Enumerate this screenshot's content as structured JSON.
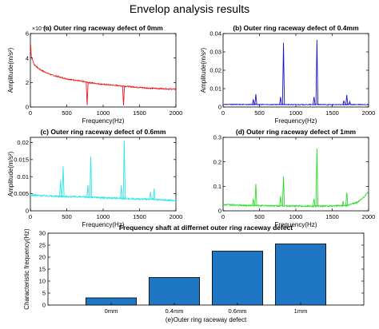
{
  "figure_title": "Envelop analysis results",
  "chart_data": [
    {
      "type": "line",
      "title": "(a) Outer ring raceway defect of 0mm",
      "xlabel": "Frequency(Hz)",
      "ylabel": "Amplitude(m/s²)",
      "exponent_label": "×10⁻³",
      "xlim": [
        0,
        2000
      ],
      "ylim": [
        0,
        6
      ],
      "xticks": [
        0,
        500,
        1000,
        1500,
        2000
      ],
      "yticks": [
        0,
        2,
        4,
        6
      ],
      "ytick_labels": [
        "0",
        "2",
        "4",
        "6"
      ],
      "color": "#e8191d",
      "baseline": [
        [
          0,
          4.4
        ],
        [
          5,
          5.3
        ],
        [
          12,
          4.2
        ],
        [
          25,
          3.9
        ],
        [
          50,
          3.5
        ],
        [
          100,
          3.2
        ],
        [
          150,
          3.0
        ],
        [
          200,
          2.85
        ],
        [
          300,
          2.6
        ],
        [
          400,
          2.45
        ],
        [
          500,
          2.3
        ],
        [
          600,
          2.2
        ],
        [
          800,
          2.0
        ],
        [
          1000,
          1.85
        ],
        [
          1200,
          1.75
        ],
        [
          1400,
          1.65
        ],
        [
          1600,
          1.55
        ],
        [
          1800,
          1.5
        ],
        [
          2000,
          1.45
        ]
      ],
      "noise": 0.05,
      "peaks": [
        [
          780,
          0.15
        ],
        [
          1280,
          0.12
        ]
      ]
    },
    {
      "type": "line",
      "title": "(b) Outer ring raceway defect of 0.4mm",
      "xlabel": "Frequency(Hz)",
      "ylabel": "Amplitude(m/s²)",
      "xlim": [
        0,
        2000
      ],
      "ylim": [
        0,
        0.04
      ],
      "xticks": [
        0,
        500,
        1000,
        1500,
        2000
      ],
      "yticks": [
        0,
        0.01,
        0.02,
        0.03,
        0.04
      ],
      "ytick_labels": [
        "0",
        "0.01",
        "0.02",
        "0.03",
        "0.04"
      ],
      "color": "#1414c8",
      "baseline": [
        [
          0,
          0.0014
        ],
        [
          200,
          0.0014
        ],
        [
          1000,
          0.0013
        ],
        [
          2000,
          0.0013
        ]
      ],
      "noise": 0.0002,
      "peaks": [
        [
          415,
          0.0042
        ],
        [
          450,
          0.007
        ],
        [
          790,
          0.0055
        ],
        [
          830,
          0.035
        ],
        [
          1250,
          0.0055
        ],
        [
          1290,
          0.0365
        ],
        [
          1660,
          0.0035
        ],
        [
          1700,
          0.0065
        ],
        [
          1740,
          0.003
        ]
      ]
    },
    {
      "type": "line",
      "title": "(c) Outer ring raceway defect of 0.6mm",
      "xlabel": "Frequency(Hz)",
      "ylabel": "Amplitude(m/s²)",
      "xlim": [
        0,
        2000
      ],
      "ylim": [
        0,
        0.0215
      ],
      "xticks": [
        0,
        500,
        1000,
        1500,
        2000
      ],
      "yticks": [
        0,
        0.005,
        0.01,
        0.015,
        0.02
      ],
      "ytick_labels": [
        "0",
        "0.005",
        "0.01",
        "0.015",
        "0.02"
      ],
      "color": "#2ee6e6",
      "baseline": [
        [
          0,
          0.0046
        ],
        [
          300,
          0.0043
        ],
        [
          800,
          0.004
        ],
        [
          1300,
          0.0036
        ],
        [
          1700,
          0.0033
        ],
        [
          2000,
          0.003
        ]
      ],
      "noise": 0.00025,
      "peaks": [
        [
          415,
          0.009
        ],
        [
          450,
          0.013
        ],
        [
          790,
          0.0075
        ],
        [
          830,
          0.0158
        ],
        [
          1250,
          0.0075
        ],
        [
          1290,
          0.0205
        ],
        [
          1650,
          0.0055
        ],
        [
          1700,
          0.0065
        ]
      ]
    },
    {
      "type": "line",
      "title": "(d) Outer ring raceway defect of 1mm",
      "xlabel": "Frequency(Hz)",
      "ylabel": "",
      "xlim": [
        0,
        2000
      ],
      "ylim": [
        0,
        0.3
      ],
      "xticks": [
        0,
        500,
        1000,
        1500,
        2000
      ],
      "yticks": [
        0,
        0.1,
        0.2,
        0.3
      ],
      "ytick_labels": [
        "0",
        "0.1",
        "0.2",
        "0.3"
      ],
      "color": "#2bdc2b",
      "baseline": [
        [
          0,
          0.025
        ],
        [
          300,
          0.022
        ],
        [
          800,
          0.02
        ],
        [
          1300,
          0.019
        ],
        [
          1700,
          0.022
        ],
        [
          1850,
          0.035
        ],
        [
          1950,
          0.06
        ],
        [
          2000,
          0.08
        ]
      ],
      "noise": 0.003,
      "peaks": [
        [
          415,
          0.05
        ],
        [
          450,
          0.11
        ],
        [
          790,
          0.06
        ],
        [
          830,
          0.14
        ],
        [
          1250,
          0.05
        ],
        [
          1290,
          0.255
        ],
        [
          1650,
          0.04
        ],
        [
          1700,
          0.075
        ]
      ]
    },
    {
      "type": "bar",
      "title": "Frequency shaft at differnet outer ring raceway defect",
      "xlabel": "(e)Outer ring raceway defect",
      "ylabel": "Characteristic frequency(Hz)",
      "categories": [
        "0mm",
        "0.4mm",
        "0.6mm",
        "1mm"
      ],
      "values": [
        3,
        11.5,
        22.5,
        25.5
      ],
      "ylim": [
        0,
        30
      ],
      "yticks": [
        0,
        5,
        10,
        15,
        20,
        25,
        30
      ],
      "ytick_labels": [
        "0",
        "5",
        "10",
        "15",
        "20",
        "25",
        "30"
      ],
      "bar_color": "#1f77c4"
    }
  ]
}
